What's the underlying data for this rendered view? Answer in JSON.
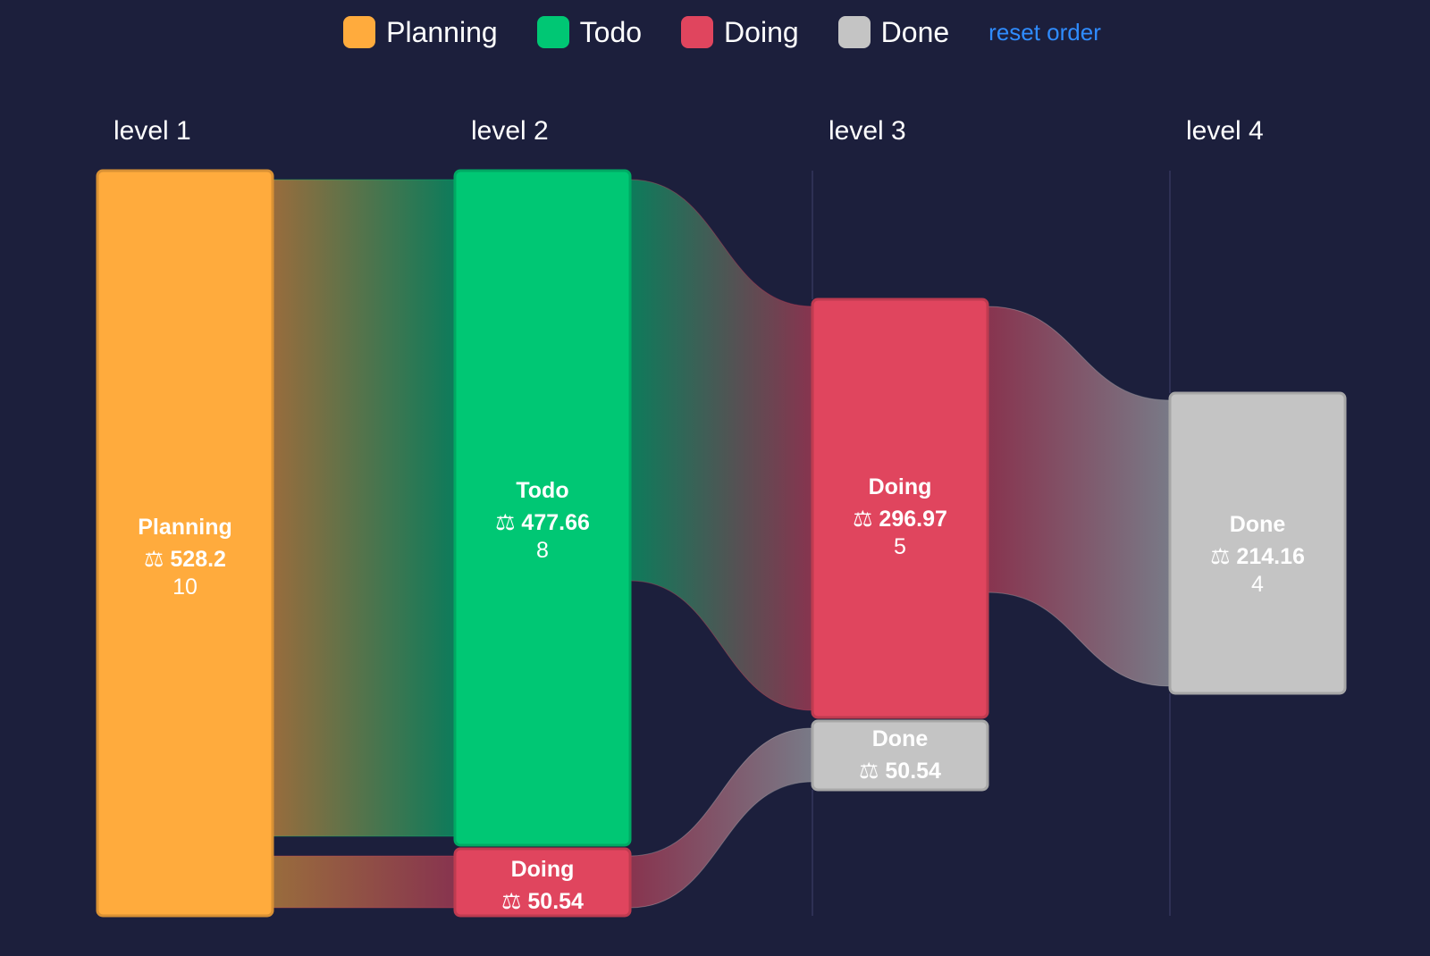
{
  "legend": {
    "items": [
      {
        "label": "Planning",
        "color": "#ffab3d"
      },
      {
        "label": "Todo",
        "color": "#00c774"
      },
      {
        "label": "Doing",
        "color": "#e0455e"
      },
      {
        "label": "Done",
        "color": "#c4c4c4"
      }
    ],
    "reset_label": "reset order"
  },
  "levels": [
    "level 1",
    "level 2",
    "level 3",
    "level 4"
  ],
  "colors": {
    "background": "#1c1f3c",
    "Planning": "#ffab3d",
    "Todo": "#00c774",
    "Doing": "#e0455e",
    "Done": "#c4c4c4"
  },
  "chart_data": {
    "type": "sankey",
    "nodes": [
      {
        "id": "n1",
        "level": 1,
        "status": "Planning",
        "label": "Planning",
        "value_text": "⚖ 528.2",
        "count_text": "10",
        "value": 528.2,
        "count": 10
      },
      {
        "id": "n2",
        "level": 2,
        "status": "Todo",
        "label": "Todo",
        "value_text": "⚖ 477.66",
        "count_text": "8",
        "value": 477.66,
        "count": 8
      },
      {
        "id": "n3",
        "level": 2,
        "status": "Doing",
        "label": "Doing",
        "value_text": "⚖ 50.54",
        "value": 50.54
      },
      {
        "id": "n4",
        "level": 3,
        "status": "Doing",
        "label": "Doing",
        "value_text": "⚖ 296.97",
        "count_text": "5",
        "value": 296.97,
        "count": 5
      },
      {
        "id": "n5",
        "level": 3,
        "status": "Done",
        "label": "Done",
        "value_text": "⚖ 50.54",
        "value": 50.54
      },
      {
        "id": "n6",
        "level": 4,
        "status": "Done",
        "label": "Done",
        "value_text": "⚖ 214.16",
        "count_text": "4",
        "value": 214.16,
        "count": 4
      }
    ],
    "links": [
      {
        "source": "n1",
        "target": "n2"
      },
      {
        "source": "n1",
        "target": "n3"
      },
      {
        "source": "n2",
        "target": "n4"
      },
      {
        "source": "n3",
        "target": "n5"
      },
      {
        "source": "n4",
        "target": "n6"
      }
    ]
  }
}
